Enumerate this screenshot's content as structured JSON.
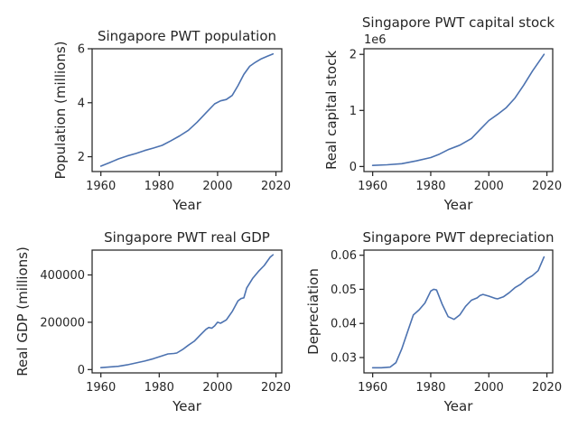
{
  "chart_data": [
    {
      "type": "line",
      "title": "Singapore PWT population",
      "xlabel": "Year",
      "ylabel": "Population (millions)",
      "offset_text": "",
      "xlim": [
        1957,
        2022
      ],
      "ylim": [
        1.45,
        6.0
      ],
      "xticks": [
        1960,
        1980,
        2000,
        2020
      ],
      "xticklabels": [
        "1960",
        "1980",
        "2000",
        "2020"
      ],
      "yticks": [
        2,
        4,
        6
      ],
      "yticklabels": [
        "2",
        "4",
        "6"
      ],
      "color": "#4c72b0",
      "x": [
        1960,
        1963,
        1966,
        1969,
        1972,
        1975,
        1978,
        1981,
        1984,
        1987,
        1990,
        1993,
        1996,
        1999,
        2001,
        2003,
        2005,
        2007,
        2009,
        2011,
        2013,
        2015,
        2017,
        2019
      ],
      "y": [
        1.65,
        1.78,
        1.92,
        2.03,
        2.12,
        2.23,
        2.32,
        2.42,
        2.59,
        2.77,
        2.98,
        3.28,
        3.62,
        3.96,
        4.07,
        4.12,
        4.27,
        4.63,
        5.05,
        5.35,
        5.5,
        5.63,
        5.72,
        5.81
      ]
    },
    {
      "type": "line",
      "title": "Singapore PWT capital stock",
      "xlabel": "Year",
      "ylabel": "Real capital stock",
      "offset_text": "1e6",
      "xlim": [
        1957,
        2022
      ],
      "ylim": [
        -0.09,
        2.1
      ],
      "xticks": [
        1960,
        1980,
        2000,
        2020
      ],
      "xticklabels": [
        "1960",
        "1980",
        "2000",
        "2020"
      ],
      "yticks": [
        0,
        1,
        2
      ],
      "yticklabels": [
        "0",
        "1",
        "2"
      ],
      "color": "#4c72b0",
      "x": [
        1960,
        1965,
        1970,
        1975,
        1980,
        1983,
        1986,
        1990,
        1994,
        1997,
        2000,
        2003,
        2006,
        2009,
        2012,
        2015,
        2019
      ],
      "y": [
        0.02,
        0.03,
        0.05,
        0.1,
        0.16,
        0.22,
        0.3,
        0.38,
        0.5,
        0.66,
        0.82,
        0.93,
        1.05,
        1.22,
        1.45,
        1.7,
        2.0
      ]
    },
    {
      "type": "line",
      "title": "Singapore PWT real GDP",
      "xlabel": "Year",
      "ylabel": "Real GDP (millions)",
      "offset_text": "",
      "xlim": [
        1957,
        2022
      ],
      "ylim": [
        -14000,
        505000
      ],
      "xticks": [
        1960,
        1980,
        2000,
        2020
      ],
      "xticklabels": [
        "1960",
        "1980",
        "2000",
        "2020"
      ],
      "yticks": [
        0,
        200000,
        400000
      ],
      "yticklabels": [
        "0",
        "200000",
        "400000"
      ],
      "color": "#4c72b0",
      "x": [
        1960,
        1963,
        1966,
        1969,
        1972,
        1975,
        1978,
        1981,
        1983,
        1985,
        1986,
        1988,
        1990,
        1992,
        1994,
        1996,
        1997,
        1998,
        1999,
        2000,
        2001,
        2003,
        2005,
        2007,
        2008,
        2009,
        2010,
        2012,
        2014,
        2016,
        2018,
        2019
      ],
      "y": [
        8000,
        11000,
        14000,
        20000,
        28000,
        36000,
        46000,
        58000,
        66000,
        68000,
        70000,
        85000,
        103000,
        120000,
        145000,
        170000,
        178000,
        175000,
        185000,
        200000,
        196000,
        210000,
        245000,
        290000,
        300000,
        303000,
        345000,
        385000,
        415000,
        440000,
        475000,
        485000
      ]
    },
    {
      "type": "line",
      "title": "Singapore PWT depreciation",
      "xlabel": "Year",
      "ylabel": "Depreciation",
      "offset_text": "",
      "xlim": [
        1957,
        2022
      ],
      "ylim": [
        0.0255,
        0.0615
      ],
      "xticks": [
        1960,
        1980,
        2000,
        2020
      ],
      "xticklabels": [
        "1960",
        "1980",
        "2000",
        "2020"
      ],
      "yticks": [
        0.03,
        0.04,
        0.05,
        0.06
      ],
      "yticklabels": [
        "0.03",
        "0.04",
        "0.05",
        "0.06"
      ],
      "color": "#4c72b0",
      "x": [
        1960,
        1963,
        1966,
        1968,
        1970,
        1972,
        1974,
        1976,
        1978,
        1980,
        1981,
        1982,
        1984,
        1986,
        1988,
        1990,
        1992,
        1994,
        1996,
        1997,
        1998,
        2000,
        2002,
        2003,
        2005,
        2007,
        2009,
        2011,
        2013,
        2015,
        2017,
        2019
      ],
      "y": [
        0.027,
        0.027,
        0.0272,
        0.0285,
        0.0325,
        0.0375,
        0.0425,
        0.044,
        0.046,
        0.0495,
        0.05,
        0.0498,
        0.0455,
        0.042,
        0.0412,
        0.0425,
        0.045,
        0.0468,
        0.0475,
        0.0482,
        0.0485,
        0.048,
        0.0474,
        0.0472,
        0.0478,
        0.049,
        0.0505,
        0.0515,
        0.053,
        0.054,
        0.0555,
        0.0595
      ]
    }
  ]
}
